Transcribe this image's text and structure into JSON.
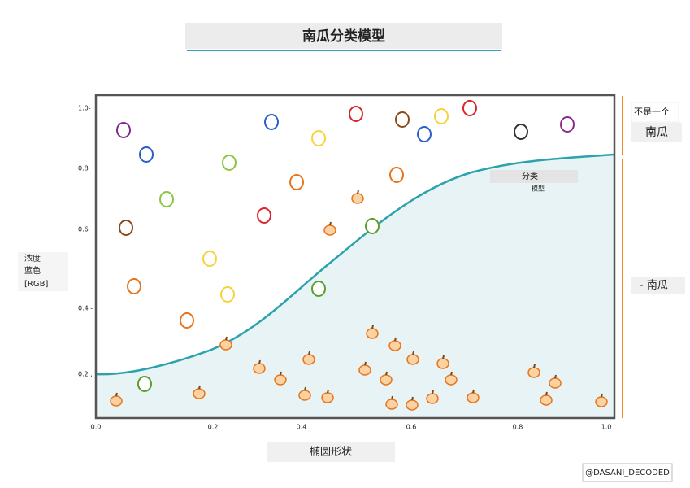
{
  "title": "南瓜分类模型",
  "y_axis_label": [
    "浓度",
    "蓝色",
    "[RGB]"
  ],
  "x_axis_label": "椭圆形状",
  "y_ticks": [
    "1.0-",
    "0.8",
    "0.6",
    "0.4 -",
    "0.2 ,"
  ],
  "x_ticks": [
    "0.0",
    "0.2",
    "0.4",
    "0.6",
    "0.8",
    "1.0"
  ],
  "right_labels": {
    "not_pumpkin": [
      "不是一个",
      "南瓜"
    ],
    "pumpkin": "- 南瓜"
  },
  "curve_label": [
    "分类",
    "模型"
  ],
  "watermark": "@DASANI_DECODED"
}
